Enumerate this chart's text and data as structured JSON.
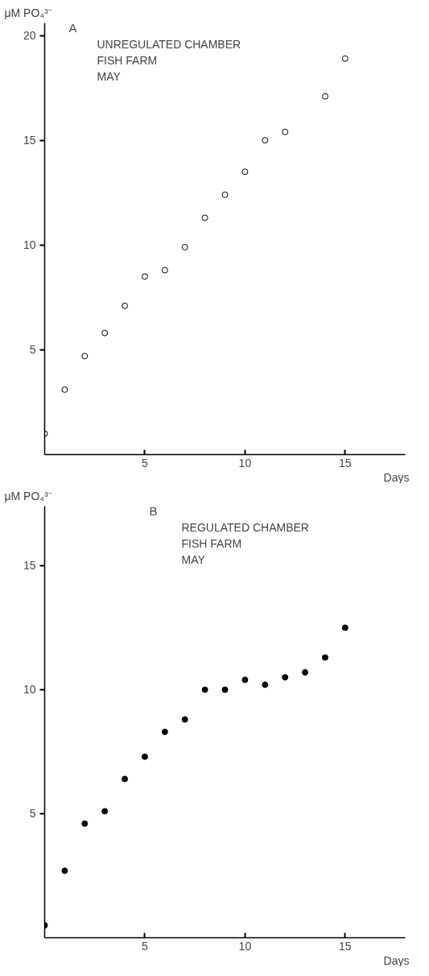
{
  "chart_data": [
    {
      "type": "scatter",
      "ylabel": "μM PO₄³⁻",
      "xlabel": "Days",
      "annotations": [
        "A",
        "UNREGULATED CHAMBER",
        "FISH FARM",
        "MAY"
      ],
      "x": [
        0,
        1,
        2,
        3,
        4,
        5,
        6,
        7,
        8,
        9,
        10,
        11,
        12,
        14,
        15
      ],
      "series": [
        {
          "color": "#000000",
          "values": [
            1.0,
            3.1,
            4.7,
            5.8,
            7.1,
            8.5,
            8.8,
            9.9,
            11.3,
            12.4,
            13.5,
            15.0,
            15.4,
            17.1,
            18.9
          ]
        }
      ],
      "marker": "circle_open",
      "xlim": [
        0,
        18
      ],
      "ylim": [
        0,
        20.6
      ],
      "xticks": [
        5,
        10,
        15
      ],
      "yticks": [
        5,
        10,
        15,
        20
      ],
      "grid": false
    },
    {
      "type": "scatter",
      "ylabel": "μM PO₄³⁻",
      "xlabel": "Days",
      "annotations": [
        "B",
        "REGULATED CHAMBER",
        "FISH FARM",
        "MAY"
      ],
      "x": [
        0,
        1,
        2,
        3,
        4,
        5,
        6,
        7,
        8,
        9,
        10,
        11,
        12,
        13,
        14,
        15
      ],
      "series": [
        {
          "color": "#000000",
          "values": [
            0.5,
            2.7,
            4.6,
            5.1,
            6.4,
            7.3,
            8.3,
            8.8,
            10.0,
            10.0,
            10.4,
            10.2,
            10.5,
            10.7,
            11.3,
            12.5
          ]
        }
      ],
      "marker": "circle",
      "xlim": [
        0,
        18
      ],
      "ylim": [
        0,
        17.4
      ],
      "xticks": [
        5,
        10,
        15
      ],
      "yticks": [
        5,
        10,
        15
      ],
      "grid": false
    }
  ]
}
